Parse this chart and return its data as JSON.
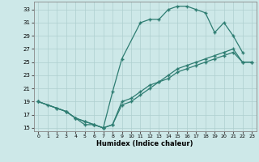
{
  "line1_x": [
    0,
    1,
    3,
    4,
    5,
    6,
    7,
    8,
    9,
    11,
    12,
    13,
    14,
    15,
    16,
    17,
    18,
    19,
    20,
    21,
    22
  ],
  "line1_y": [
    19,
    18.5,
    17.5,
    16.5,
    15.5,
    15.5,
    15,
    20.5,
    25.5,
    31,
    31.5,
    31.5,
    33,
    33.5,
    33.5,
    33,
    32.5,
    29.5,
    31,
    29,
    26.5
  ],
  "line2_x": [
    0,
    2,
    3,
    4,
    5,
    6,
    7,
    8,
    9,
    10,
    11,
    12,
    13,
    14,
    15,
    16,
    17,
    18,
    19,
    20,
    21,
    22,
    23
  ],
  "line2_y": [
    19,
    18,
    17.5,
    16.5,
    16,
    15.5,
    15,
    15.5,
    19,
    19.5,
    20.5,
    21.5,
    22,
    23,
    24,
    24.5,
    25,
    25.5,
    26,
    26.5,
    27,
    25,
    25
  ],
  "line3_x": [
    0,
    2,
    3,
    4,
    5,
    6,
    7,
    8,
    9,
    10,
    11,
    12,
    13,
    14,
    15,
    16,
    17,
    18,
    19,
    20,
    21,
    22,
    23
  ],
  "line3_y": [
    19,
    18,
    17.5,
    16.5,
    16,
    15.5,
    15,
    15.5,
    18.5,
    19,
    20,
    21,
    22,
    22.5,
    23.5,
    24,
    24.5,
    25,
    25.5,
    26,
    26.5,
    25,
    25
  ],
  "color": "#2e7d72",
  "bg_color": "#cde8e8",
  "grid_color": "#aecfcf",
  "xlabel": "Humidex (Indice chaleur)",
  "yticks": [
    15,
    17,
    19,
    21,
    23,
    25,
    27,
    29,
    31,
    33
  ],
  "xticks": [
    0,
    1,
    2,
    3,
    4,
    5,
    6,
    7,
    8,
    9,
    10,
    11,
    12,
    13,
    14,
    15,
    16,
    17,
    18,
    19,
    20,
    21,
    22,
    23
  ],
  "xlim": [
    -0.5,
    23.5
  ],
  "ylim": [
    14.5,
    34.2
  ]
}
